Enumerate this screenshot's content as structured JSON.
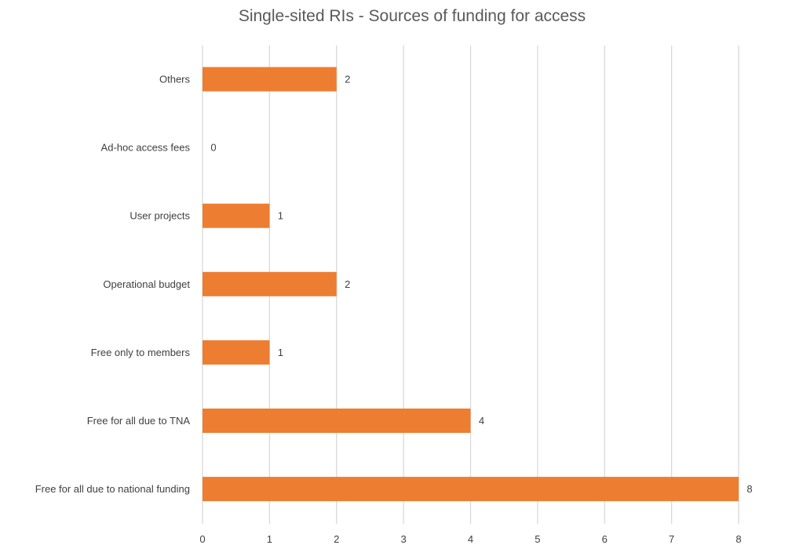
{
  "chart_data": {
    "type": "bar",
    "orientation": "horizontal",
    "title": "Single-sited RIs - Sources of funding for access",
    "categories": [
      "Others",
      "Ad-hoc access fees",
      "User projects",
      "Operational budget",
      "Free only to members",
      "Free for all due to TNA",
      "Free for all due to national funding"
    ],
    "values": [
      2,
      0,
      1,
      2,
      1,
      4,
      8
    ],
    "xlim": [
      0,
      8
    ],
    "x_ticks": [
      "0",
      "1",
      "2",
      "3",
      "4",
      "5",
      "6",
      "7",
      "8"
    ],
    "xlabel": "",
    "ylabel": "",
    "grid": "vertical",
    "legend": "none",
    "data_labels": true,
    "bar_color": "#ed7d31"
  }
}
